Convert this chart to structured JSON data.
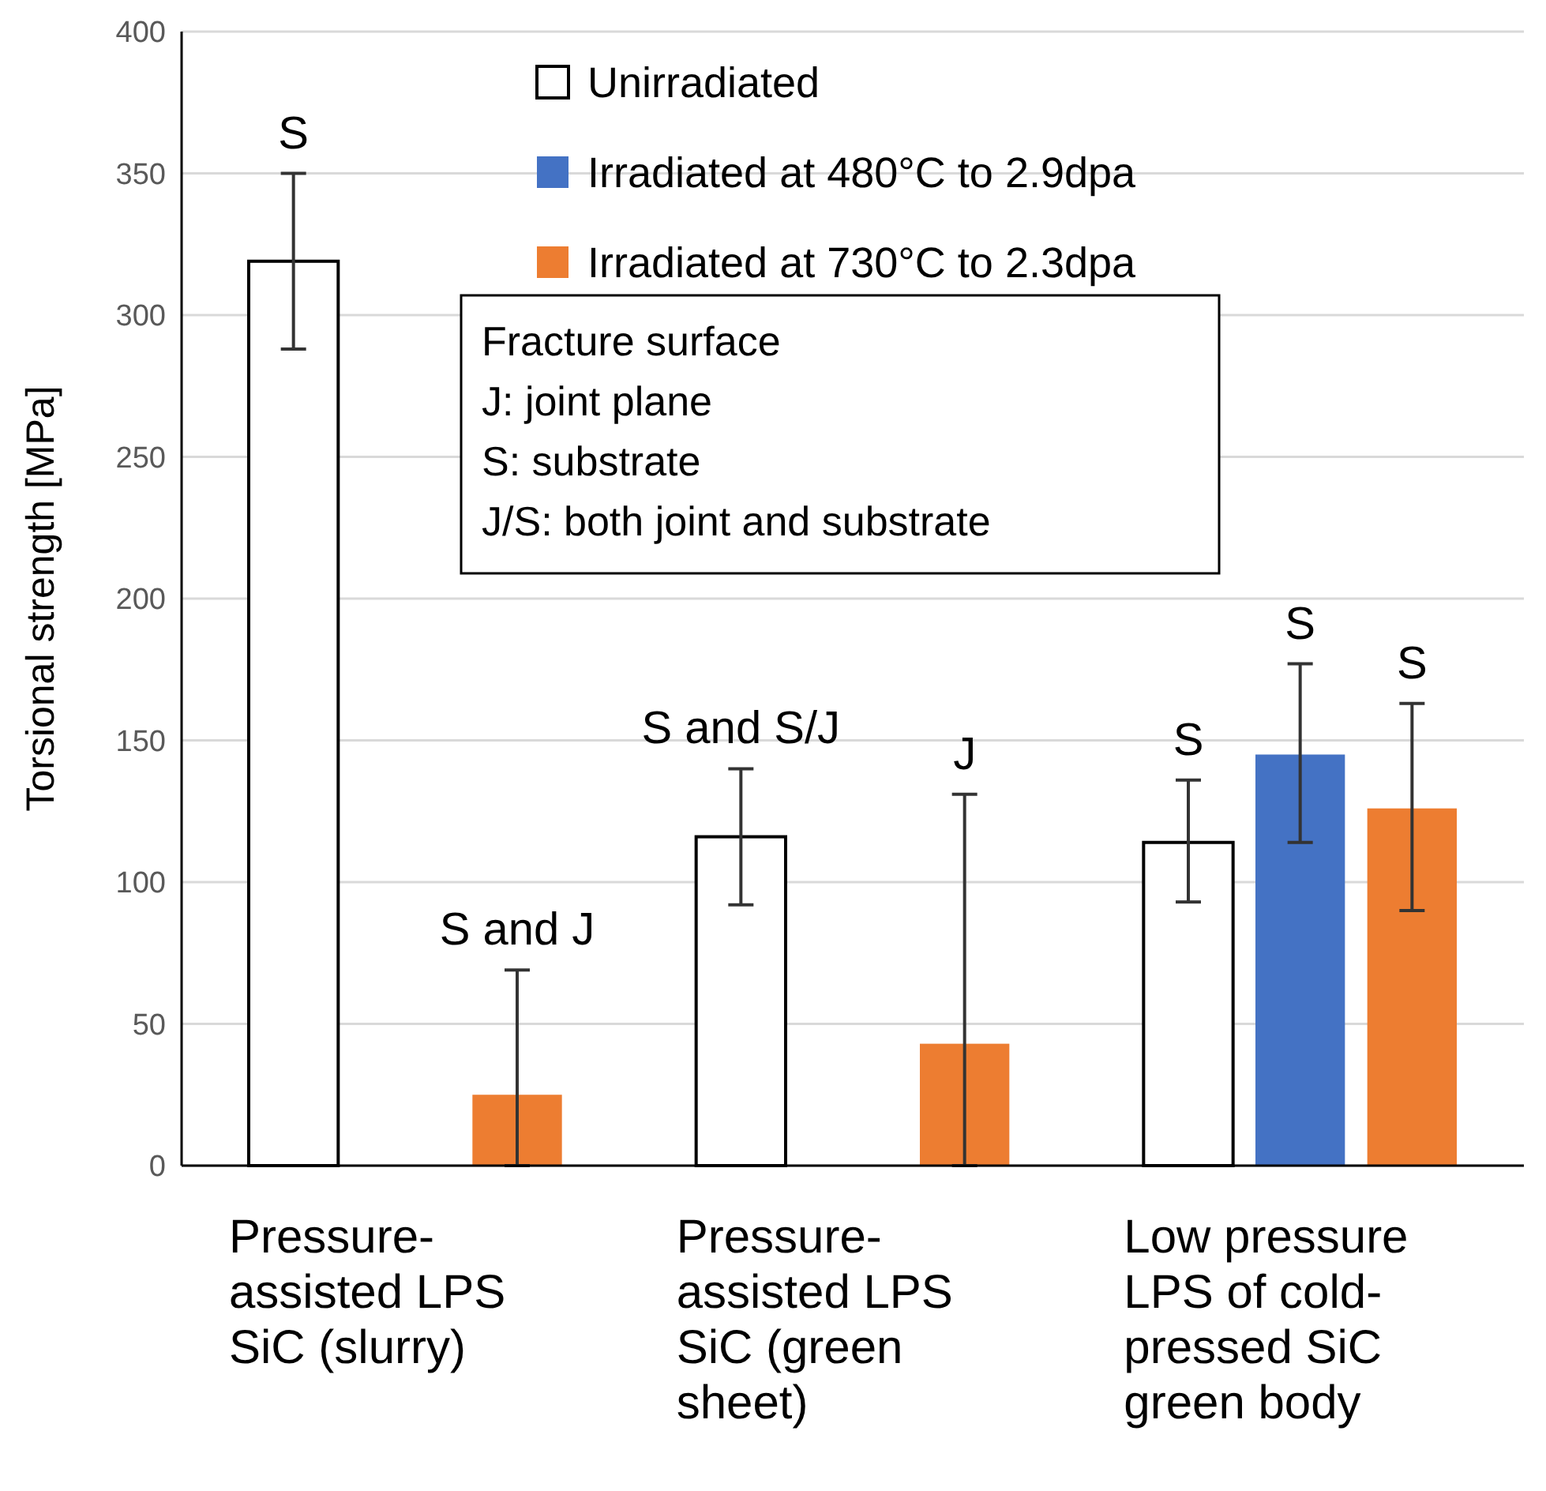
{
  "chart_data": {
    "type": "bar",
    "ylabel": "Torsional strength [MPa]",
    "categories": [
      "Pressure-assisted LPS SiC (slurry)",
      "Pressure-assisted LPS SiC (green sheet)",
      "Low pressure LPS of cold-pressed SiC green body"
    ],
    "series": [
      {
        "name": "Unirradiated",
        "color": "#ffffff",
        "values": [
          319,
          116,
          114
        ],
        "errors": [
          [
            288,
            350
          ],
          [
            92,
            140
          ],
          [
            93,
            136
          ]
        ]
      },
      {
        "name": "Irradiated at 480°C to 2.9dpa",
        "color": "#4472c4",
        "values": [
          null,
          null,
          145
        ],
        "errors": [
          null,
          null,
          [
            114,
            177
          ]
        ]
      },
      {
        "name": "Irradiated at 730°C to 2.3dpa",
        "color": "#ed7d31",
        "values": [
          25,
          43,
          126
        ],
        "errors": [
          [
            0,
            69
          ],
          [
            0,
            131
          ],
          [
            90,
            163
          ]
        ]
      }
    ],
    "ylim": [
      0,
      400
    ],
    "yticks": [
      0,
      50,
      100,
      150,
      200,
      250,
      300,
      350,
      400
    ],
    "grid": "y",
    "legend": "top",
    "annotations": [
      "S",
      "S and J",
      "S and S/J",
      "J",
      "S",
      "S",
      "S",
      "Fracture surface",
      "J: joint plane",
      "S: substrate",
      "J/S: both joint and substrate"
    ]
  }
}
